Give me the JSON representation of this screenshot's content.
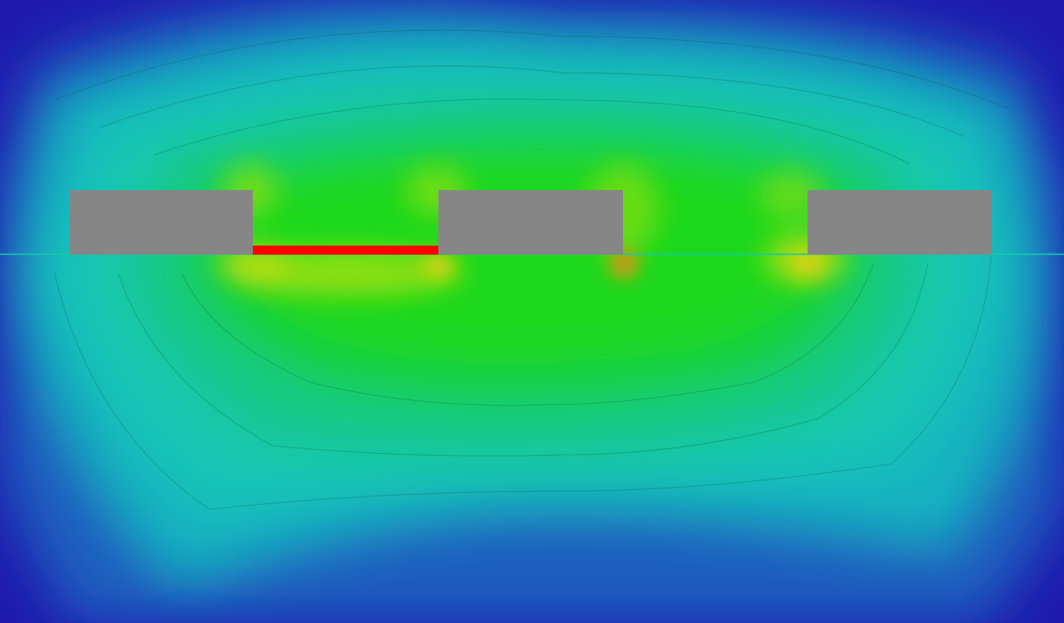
{
  "view": {
    "kind": "field-contour-plot",
    "colormap": [
      "#1f1aae",
      "#1f5fbf",
      "#18b4c0",
      "#17c7b4",
      "#12c98a",
      "#12cf3a",
      "#1fd81a",
      "#7ede10",
      "#c7df0c",
      "#e0a010",
      "#e05a10"
    ],
    "background_color": "#1f1aae",
    "electrode_color": "#868686",
    "gap_strip_color": "#ff0000",
    "interface_line_color": "#18c8aa",
    "electrodes": [
      {
        "name": "electrode-left"
      },
      {
        "name": "electrode-center"
      },
      {
        "name": "electrode-right"
      }
    ],
    "field_hotspots": [
      {
        "name": "hotspot-gap-right-edge",
        "level": 0.95
      },
      {
        "name": "hotspot-left-edge",
        "level": 0.72
      },
      {
        "name": "hotspot-right-edge",
        "level": 0.8
      }
    ]
  }
}
